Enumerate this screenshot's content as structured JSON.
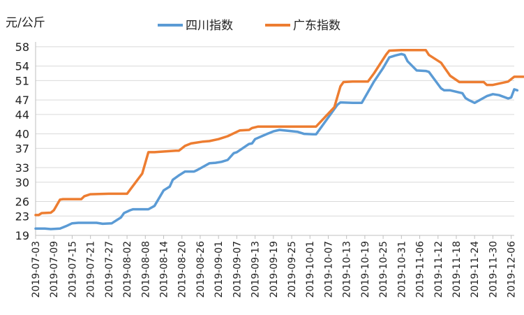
{
  "chart_data": {
    "type": "line",
    "unit_label": "元/公斤",
    "yticks": [
      19,
      23,
      26,
      30,
      33,
      37,
      40,
      44,
      47,
      51,
      54,
      58
    ],
    "ylim": [
      19,
      59
    ],
    "xticks": [
      "2019-07-03",
      "2019-07-09",
      "2019-07-15",
      "2019-07-21",
      "2019-07-27",
      "2019-08-02",
      "2019-08-08",
      "2019-08-14",
      "2019-08-20",
      "2019-08-26",
      "2019-09-01",
      "2019-09-07",
      "2019-09-13",
      "2019-09-19",
      "2019-09-25",
      "2019-10-01",
      "2019-10-07",
      "2019-10-13",
      "2019-10-19",
      "2019-10-25",
      "2019-10-31",
      "2019-11-06",
      "2019-11-12",
      "2019-11-18",
      "2019-11-24",
      "2019-11-30",
      "2019-12-06"
    ],
    "x_start": "2019-07-03",
    "x_end": "2019-12-07",
    "legend_position": "top-center",
    "series": [
      {
        "name": "四川指数",
        "color": "#5b9bd5",
        "points": [
          [
            "2019-07-03",
            20.4
          ],
          [
            "2019-07-06",
            20.4
          ],
          [
            "2019-07-08",
            20.3
          ],
          [
            "2019-07-11",
            20.4
          ],
          [
            "2019-07-13",
            20.9
          ],
          [
            "2019-07-15",
            21.5
          ],
          [
            "2019-07-17",
            21.6
          ],
          [
            "2019-07-23",
            21.6
          ],
          [
            "2019-07-25",
            21.4
          ],
          [
            "2019-07-28",
            21.5
          ],
          [
            "2019-07-31",
            22.7
          ],
          [
            "2019-08-01",
            23.6
          ],
          [
            "2019-08-03",
            24.2
          ],
          [
            "2019-08-04",
            24.4
          ],
          [
            "2019-08-09",
            24.4
          ],
          [
            "2019-08-11",
            25.1
          ],
          [
            "2019-08-14",
            28.3
          ],
          [
            "2019-08-16",
            29.1
          ],
          [
            "2019-08-17",
            30.5
          ],
          [
            "2019-08-19",
            31.4
          ],
          [
            "2019-08-21",
            32.2
          ],
          [
            "2019-08-24",
            32.2
          ],
          [
            "2019-08-25",
            32.5
          ],
          [
            "2019-08-29",
            33.9
          ],
          [
            "2019-08-31",
            34.0
          ],
          [
            "2019-09-02",
            34.2
          ],
          [
            "2019-09-04",
            34.6
          ],
          [
            "2019-09-06",
            36.0
          ],
          [
            "2019-09-07",
            36.2
          ],
          [
            "2019-09-11",
            37.9
          ],
          [
            "2019-09-12",
            38.0
          ],
          [
            "2019-09-13",
            38.9
          ],
          [
            "2019-09-17",
            40.0
          ],
          [
            "2019-09-19",
            40.5
          ],
          [
            "2019-09-21",
            40.8
          ],
          [
            "2019-09-24",
            40.6
          ],
          [
            "2019-09-27",
            40.4
          ],
          [
            "2019-09-29",
            40.0
          ],
          [
            "2019-10-02",
            39.9
          ],
          [
            "2019-10-03",
            39.9
          ],
          [
            "2019-10-10",
            46.0
          ],
          [
            "2019-10-11",
            46.5
          ],
          [
            "2019-10-15",
            46.4
          ],
          [
            "2019-10-18",
            46.4
          ],
          [
            "2019-10-22",
            50.8
          ],
          [
            "2019-10-25",
            53.6
          ],
          [
            "2019-10-27",
            55.8
          ],
          [
            "2019-10-29",
            56.2
          ],
          [
            "2019-10-31",
            56.5
          ],
          [
            "2019-11-01",
            56.3
          ],
          [
            "2019-11-02",
            55.0
          ],
          [
            "2019-11-05",
            53.1
          ],
          [
            "2019-11-08",
            53.0
          ],
          [
            "2019-11-09",
            52.8
          ],
          [
            "2019-11-13",
            49.4
          ],
          [
            "2019-11-14",
            49.0
          ],
          [
            "2019-11-16",
            49.0
          ],
          [
            "2019-11-20",
            48.4
          ],
          [
            "2019-11-21",
            47.4
          ],
          [
            "2019-11-22",
            47.0
          ],
          [
            "2019-11-24",
            46.4
          ],
          [
            "2019-11-28",
            47.8
          ],
          [
            "2019-11-30",
            48.2
          ],
          [
            "2019-12-02",
            48.0
          ],
          [
            "2019-12-05",
            47.3
          ],
          [
            "2019-12-06",
            47.5
          ],
          [
            "2019-12-07",
            49.2
          ],
          [
            "2019-12-08",
            49.0
          ]
        ]
      },
      {
        "name": "广东指数",
        "color": "#ed7d31",
        "points": [
          [
            "2019-07-03",
            23.2
          ],
          [
            "2019-07-04",
            23.2
          ],
          [
            "2019-07-05",
            23.6
          ],
          [
            "2019-07-08",
            23.7
          ],
          [
            "2019-07-09",
            24.2
          ],
          [
            "2019-07-11",
            26.4
          ],
          [
            "2019-07-12",
            26.5
          ],
          [
            "2019-07-18",
            26.5
          ],
          [
            "2019-07-19",
            27.1
          ],
          [
            "2019-07-21",
            27.5
          ],
          [
            "2019-07-27",
            27.6
          ],
          [
            "2019-08-02",
            27.6
          ],
          [
            "2019-08-07",
            31.8
          ],
          [
            "2019-08-09",
            36.2
          ],
          [
            "2019-08-11",
            36.2
          ],
          [
            "2019-08-13",
            36.3
          ],
          [
            "2019-08-18",
            36.5
          ],
          [
            "2019-08-19",
            36.5
          ],
          [
            "2019-08-21",
            37.5
          ],
          [
            "2019-08-23",
            38.0
          ],
          [
            "2019-08-27",
            38.4
          ],
          [
            "2019-08-29",
            38.5
          ],
          [
            "2019-09-01",
            38.9
          ],
          [
            "2019-09-04",
            39.5
          ],
          [
            "2019-09-08",
            40.7
          ],
          [
            "2019-09-11",
            40.8
          ],
          [
            "2019-09-12",
            41.2
          ],
          [
            "2019-09-14",
            41.5
          ],
          [
            "2019-09-23",
            41.5
          ],
          [
            "2019-10-03",
            41.5
          ],
          [
            "2019-10-09",
            45.5
          ],
          [
            "2019-10-11",
            49.8
          ],
          [
            "2019-10-12",
            50.7
          ],
          [
            "2019-10-15",
            50.8
          ],
          [
            "2019-10-20",
            50.8
          ],
          [
            "2019-10-22",
            52.5
          ],
          [
            "2019-10-26",
            56.4
          ],
          [
            "2019-10-27",
            57.2
          ],
          [
            "2019-10-31",
            57.3
          ],
          [
            "2019-11-08",
            57.3
          ],
          [
            "2019-11-09",
            56.3
          ],
          [
            "2019-11-13",
            54.7
          ],
          [
            "2019-11-16",
            52.0
          ],
          [
            "2019-11-19",
            50.7
          ],
          [
            "2019-11-27",
            50.7
          ],
          [
            "2019-11-28",
            50.1
          ],
          [
            "2019-11-30",
            50.1
          ],
          [
            "2019-12-05",
            50.8
          ],
          [
            "2019-12-07",
            51.8
          ],
          [
            "2019-12-10",
            51.8
          ]
        ]
      }
    ]
  }
}
